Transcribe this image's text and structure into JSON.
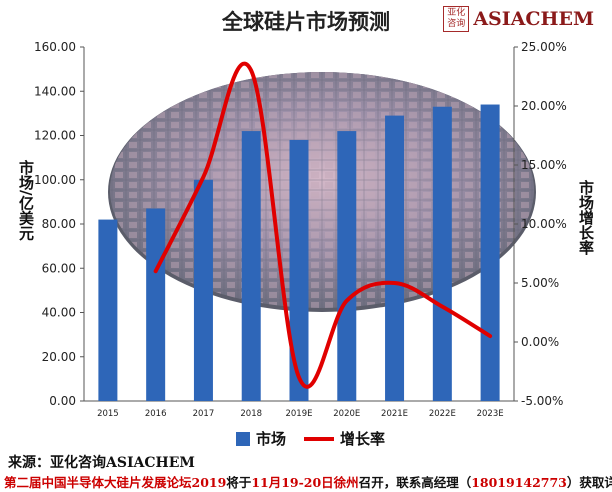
{
  "chart_data": {
    "type": "bar+line",
    "title": "全球硅片市场预测",
    "categories": [
      "2015",
      "2016",
      "2017",
      "2018",
      "2019E",
      "2020E",
      "2021E",
      "2022E",
      "2023E"
    ],
    "series": [
      {
        "name": "市场",
        "type": "bar",
        "axis": "left",
        "values": [
          82,
          87,
          100,
          122,
          118,
          122,
          129,
          133,
          134
        ]
      },
      {
        "name": "增长率",
        "type": "line",
        "axis": "right",
        "values": [
          null,
          6.0,
          14.0,
          23.0,
          -3.0,
          3.5,
          5.0,
          3.0,
          0.5
        ]
      }
    ],
    "ylabel_left": "市场/亿美元",
    "ylabel_right": "市场增长率",
    "ylim_left": [
      0,
      160
    ],
    "ylim_right": [
      -5,
      25
    ],
    "yticks_left": [
      "0.00",
      "20.00",
      "40.00",
      "60.00",
      "80.00",
      "100.00",
      "120.00",
      "140.00",
      "160.00"
    ],
    "yticks_right": [
      "-5.00%",
      "0.00%",
      "5.00%",
      "10.00%",
      "15.00%",
      "20.00%",
      "25.00%"
    ],
    "legend_position": "bottom",
    "colors": {
      "bar": "#2e66b8",
      "line": "#e00000"
    }
  },
  "logo": {
    "seal": "亚化咨询",
    "text": "ASIACHEM"
  },
  "footer": {
    "source": "来源：亚化咨询ASIACHEM",
    "line2_a": "第二届中国半导体大硅片发展论坛2019",
    "line2_b": "将于",
    "line2_c": "11月19-20日徐州",
    "line2_d": "召开，联系高经理（",
    "line2_e": "18019142773",
    "line2_f": "）获取详情"
  }
}
